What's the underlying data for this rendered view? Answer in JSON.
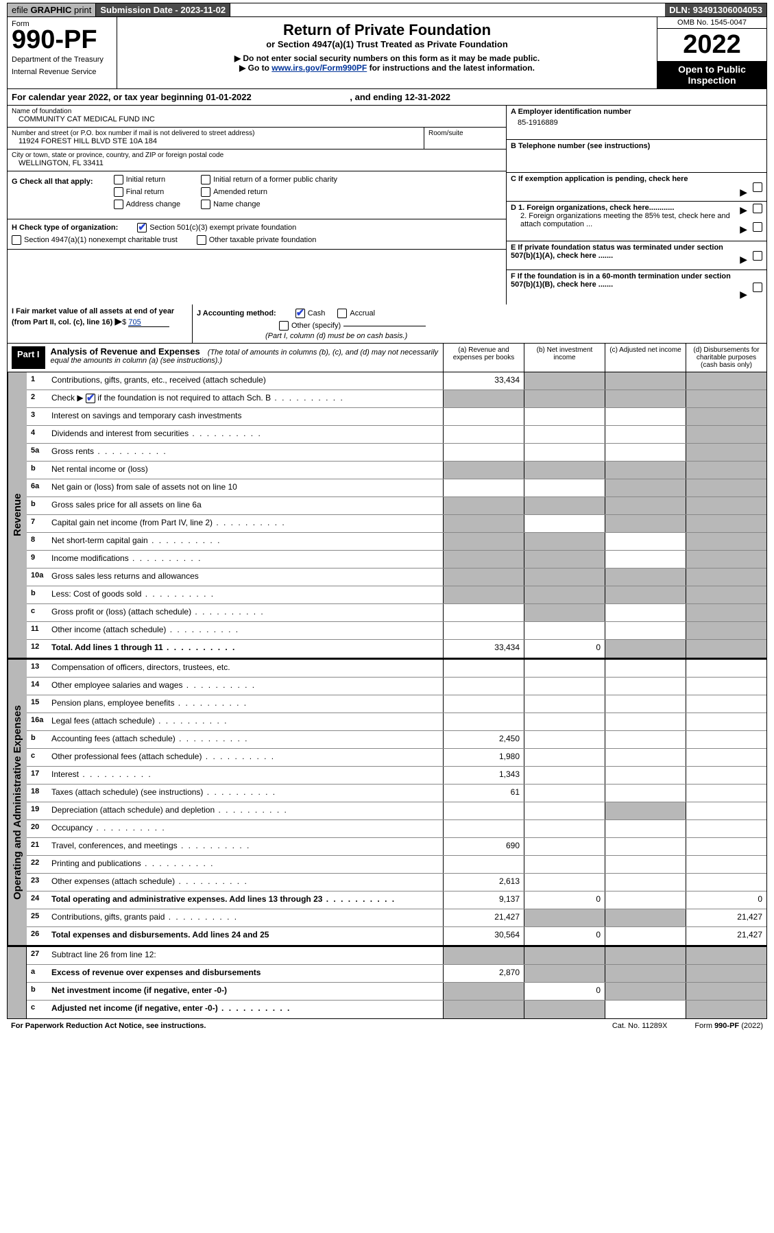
{
  "topbar": {
    "efile_prefix": "efile ",
    "efile_graphic": "GRAPHIC",
    "efile_print": " print",
    "submission_label": "Submission Date - ",
    "submission_date": "2023-11-02",
    "dln_label": "DLN: ",
    "dln": "93491306004053"
  },
  "header": {
    "form_word": "Form",
    "form_number": "990-PF",
    "dept": "Department of the Treasury",
    "irs": "Internal Revenue Service",
    "title": "Return of Private Foundation",
    "subtitle": "or Section 4947(a)(1) Trust Treated as Private Foundation",
    "note1": "▶ Do not enter social security numbers on this form as it may be made public.",
    "note2_pre": "▶ Go to ",
    "note2_link": "www.irs.gov/Form990PF",
    "note2_post": " for instructions and the latest information.",
    "omb": "OMB No. 1545-0047",
    "year": "2022",
    "inspection": "Open to Public Inspection"
  },
  "calendar": {
    "text_pre": "For calendar year 2022, or tax year beginning ",
    "begin": "01-01-2022",
    "text_mid": " , and ending ",
    "end": "12-31-2022"
  },
  "info": {
    "name_label": "Name of foundation",
    "name": "COMMUNITY CAT MEDICAL FUND INC",
    "addr_label": "Number and street (or P.O. box number if mail is not delivered to street address)",
    "addr": "11924 FOREST HILL BLVD STE 10A 184",
    "room_label": "Room/suite",
    "city_label": "City or town, state or province, country, and ZIP or foreign postal code",
    "city": "WELLINGTON, FL  33411",
    "a_label": "A Employer identification number",
    "a_val": "85-1916889",
    "b_label": "B Telephone number (see instructions)",
    "c_label": "C If exemption application is pending, check here",
    "d1_label": "D 1. Foreign organizations, check here............",
    "d2_label": "2. Foreign organizations meeting the 85% test, check here and attach computation ...",
    "e_label": "E  If private foundation status was terminated under section 507(b)(1)(A), check here .......",
    "f_label": "F  If the foundation is in a 60-month termination under section 507(b)(1)(B), check here .......",
    "g_label": "G Check all that apply:",
    "g_initial": "Initial return",
    "g_initial_former": "Initial return of a former public charity",
    "g_final": "Final return",
    "g_amended": "Amended return",
    "g_address": "Address change",
    "g_name": "Name change",
    "h_label": "H Check type of organization:",
    "h_501c3": "Section 501(c)(3) exempt private foundation",
    "h_4947": "Section 4947(a)(1) nonexempt charitable trust",
    "h_other": "Other taxable private foundation",
    "i_label": "I Fair market value of all assets at end of year (from Part II, col. (c), line 16)",
    "i_val": "705",
    "j_label": "J Accounting method:",
    "j_cash": "Cash",
    "j_accrual": "Accrual",
    "j_other": "Other (specify)",
    "j_note": "(Part I, column (d) must be on cash basis.)"
  },
  "part1": {
    "label": "Part I",
    "title": "Analysis of Revenue and Expenses",
    "title_note": "(The total of amounts in columns (b), (c), and (d) may not necessarily equal the amounts in column (a) (see instructions).)",
    "col_a": "(a)   Revenue and expenses per books",
    "col_b": "(b)   Net investment income",
    "col_c": "(c)   Adjusted net income",
    "col_d": "(d)   Disbursements for charitable purposes (cash basis only)"
  },
  "sections": {
    "revenue": "Revenue",
    "expenses": "Operating and Administrative Expenses"
  },
  "rows": {
    "r1": {
      "num": "1",
      "label": "Contributions, gifts, grants, etc., received (attach schedule)",
      "a": "33,434"
    },
    "r2": {
      "num": "2",
      "label_pre": "Check ▶",
      "label_post": " if the foundation is not required to attach Sch. B"
    },
    "r3": {
      "num": "3",
      "label": "Interest on savings and temporary cash investments"
    },
    "r4": {
      "num": "4",
      "label": "Dividends and interest from securities"
    },
    "r5a": {
      "num": "5a",
      "label": "Gross rents"
    },
    "r5b": {
      "num": "b",
      "label": "Net rental income or (loss)"
    },
    "r6a": {
      "num": "6a",
      "label": "Net gain or (loss) from sale of assets not on line 10"
    },
    "r6b": {
      "num": "b",
      "label": "Gross sales price for all assets on line 6a"
    },
    "r7": {
      "num": "7",
      "label": "Capital gain net income (from Part IV, line 2)"
    },
    "r8": {
      "num": "8",
      "label": "Net short-term capital gain"
    },
    "r9": {
      "num": "9",
      "label": "Income modifications"
    },
    "r10a": {
      "num": "10a",
      "label": "Gross sales less returns and allowances"
    },
    "r10b": {
      "num": "b",
      "label": "Less: Cost of goods sold"
    },
    "r10c": {
      "num": "c",
      "label": "Gross profit or (loss) (attach schedule)"
    },
    "r11": {
      "num": "11",
      "label": "Other income (attach schedule)"
    },
    "r12": {
      "num": "12",
      "label": "Total. Add lines 1 through 11",
      "a": "33,434",
      "b": "0"
    },
    "r13": {
      "num": "13",
      "label": "Compensation of officers, directors, trustees, etc."
    },
    "r14": {
      "num": "14",
      "label": "Other employee salaries and wages"
    },
    "r15": {
      "num": "15",
      "label": "Pension plans, employee benefits"
    },
    "r16a": {
      "num": "16a",
      "label": "Legal fees (attach schedule)"
    },
    "r16b": {
      "num": "b",
      "label": "Accounting fees (attach schedule)",
      "a": "2,450"
    },
    "r16c": {
      "num": "c",
      "label": "Other professional fees (attach schedule)",
      "a": "1,980"
    },
    "r17": {
      "num": "17",
      "label": "Interest",
      "a": "1,343"
    },
    "r18": {
      "num": "18",
      "label": "Taxes (attach schedule) (see instructions)",
      "a": "61"
    },
    "r19": {
      "num": "19",
      "label": "Depreciation (attach schedule) and depletion"
    },
    "r20": {
      "num": "20",
      "label": "Occupancy"
    },
    "r21": {
      "num": "21",
      "label": "Travel, conferences, and meetings",
      "a": "690"
    },
    "r22": {
      "num": "22",
      "label": "Printing and publications"
    },
    "r23": {
      "num": "23",
      "label": "Other expenses (attach schedule)",
      "a": "2,613"
    },
    "r24": {
      "num": "24",
      "label": "Total operating and administrative expenses. Add lines 13 through 23",
      "a": "9,137",
      "b": "0",
      "d": "0"
    },
    "r25": {
      "num": "25",
      "label": "Contributions, gifts, grants paid",
      "a": "21,427",
      "d": "21,427"
    },
    "r26": {
      "num": "26",
      "label": "Total expenses and disbursements. Add lines 24 and 25",
      "a": "30,564",
      "b": "0",
      "d": "21,427"
    },
    "r27": {
      "num": "27",
      "label": "Subtract line 26 from line 12:"
    },
    "r27a": {
      "num": "a",
      "label": "Excess of revenue over expenses and disbursements",
      "a": "2,870"
    },
    "r27b": {
      "num": "b",
      "label": "Net investment income (if negative, enter -0-)",
      "b": "0"
    },
    "r27c": {
      "num": "c",
      "label": "Adjusted net income (if negative, enter -0-)"
    }
  },
  "footer": {
    "left": "For Paperwork Reduction Act Notice, see instructions.",
    "cat": "Cat. No. 11289X",
    "form": "Form 990-PF (2022)"
  }
}
